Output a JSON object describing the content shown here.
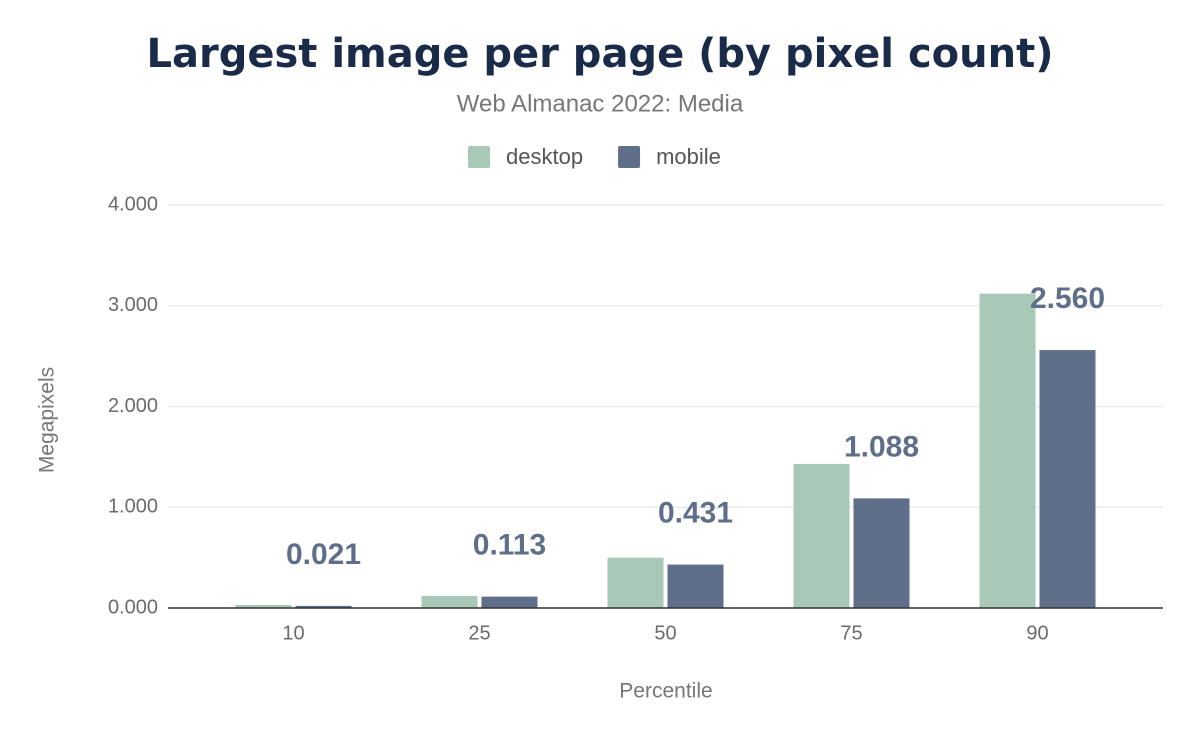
{
  "chart_data": {
    "type": "bar",
    "title": "Largest image per page (by pixel count)",
    "subtitle": "Web Almanac 2022: Media",
    "x_label": "Percentile",
    "y_label": "Megapixels",
    "categories": [
      "10",
      "25",
      "50",
      "75",
      "90"
    ],
    "series": [
      {
        "name": "desktop",
        "color": "#a8c9b8",
        "values": [
          0.03,
          0.12,
          0.5,
          1.43,
          3.12
        ]
      },
      {
        "name": "mobile",
        "color": "#5f6f8a",
        "values": [
          0.021,
          0.113,
          0.431,
          1.088,
          2.56
        ],
        "value_labels": [
          "0.021",
          "0.113",
          "0.431",
          "1.088",
          "2.560"
        ]
      }
    ],
    "ylim": [
      0,
      4
    ],
    "yticks": [
      {
        "value": 0,
        "label": "0.000"
      },
      {
        "value": 1,
        "label": "1.000"
      },
      {
        "value": 2,
        "label": "2.000"
      },
      {
        "value": 3,
        "label": "3.000"
      },
      {
        "value": 4,
        "label": "4.000"
      }
    ],
    "grid": true,
    "legend": "top"
  }
}
